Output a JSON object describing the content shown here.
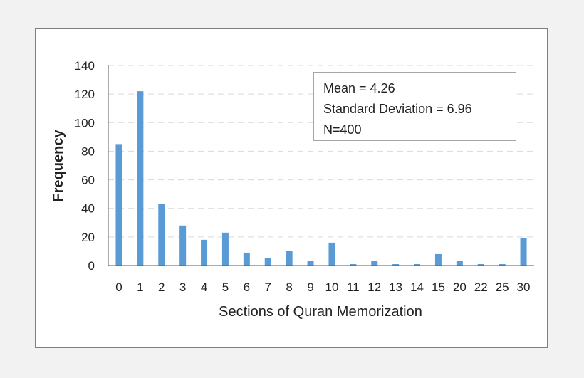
{
  "chart_data": {
    "type": "bar",
    "title": "",
    "xlabel": "Sections of Quran Memorization",
    "ylabel": "Frequency",
    "categories": [
      "0",
      "1",
      "2",
      "3",
      "4",
      "5",
      "6",
      "7",
      "8",
      "9",
      "10",
      "11",
      "12",
      "13",
      "14",
      "15",
      "20",
      "22",
      "25",
      "30"
    ],
    "values": [
      85,
      122,
      43,
      28,
      18,
      23,
      9,
      5,
      10,
      3,
      16,
      1,
      3,
      1,
      1,
      8,
      3,
      1,
      1,
      19
    ],
    "ylim": [
      0,
      140
    ],
    "yticks": [
      0,
      20,
      40,
      60,
      80,
      100,
      120,
      140
    ],
    "grid": "horizontal dashed",
    "bar_color": "#5b9bd5",
    "annotations": [
      "Mean = 4.26",
      "Standard Deviation = 6.96",
      "N=400"
    ]
  }
}
